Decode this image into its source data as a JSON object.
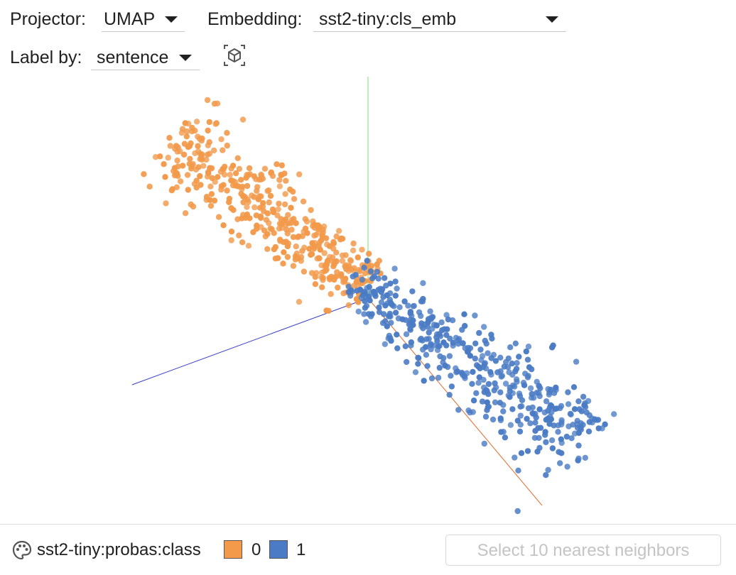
{
  "toolbar": {
    "projector_label": "Projector:",
    "projector_value": "UMAP",
    "embedding_label": "Embedding:",
    "embedding_value": "sst2-tiny:cls_emb",
    "label_by_label": "Label by:",
    "label_by_value": "sentence",
    "reset_view_icon": "3d-cube-icon"
  },
  "legend": {
    "palette_icon": "palette-icon",
    "color_field": "sst2-tiny:probas:class",
    "classes": [
      {
        "label": "0",
        "color": "#f2994a"
      },
      {
        "label": "1",
        "color": "#4a7bc4"
      }
    ]
  },
  "actions": {
    "nearest_neighbors_label": "Select 10 nearest neighbors"
  },
  "colors": {
    "axis_x": "#e5692a",
    "axis_y": "#77e077",
    "axis_z": "#3a3fc8",
    "class0": "#f2994a",
    "class1": "#4a7bc4"
  }
}
